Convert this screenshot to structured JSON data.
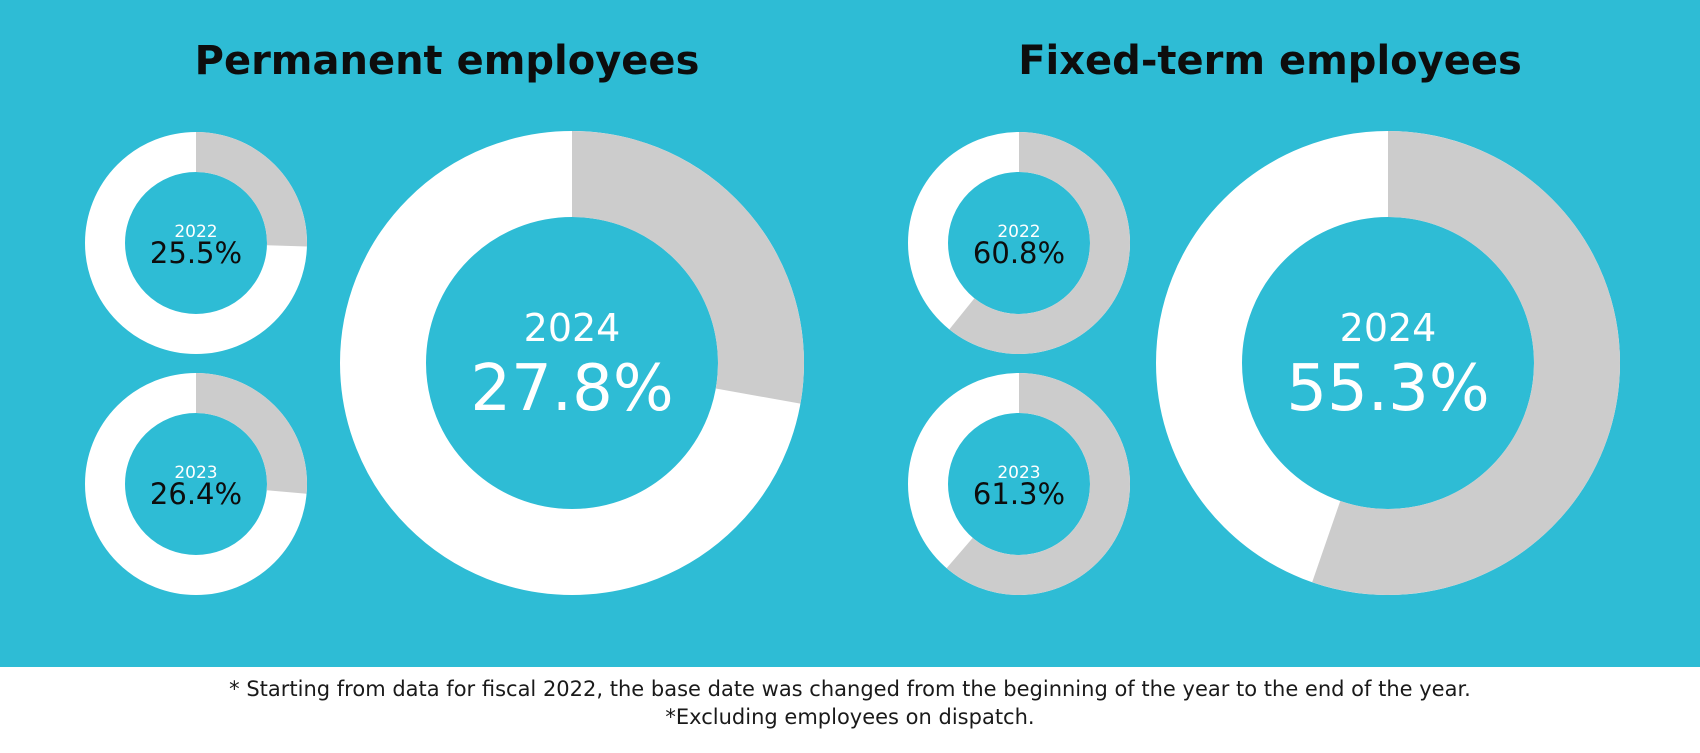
{
  "colors": {
    "background": "#2ebcd5",
    "share": "#cccccc",
    "remainder": "#ffffff",
    "small_value_text": "#0d0d0d",
    "large_value_text": "#ffffff"
  },
  "chart_data": [
    {
      "type": "pie",
      "variant": "donut",
      "title": "Permanent employees",
      "series": [
        {
          "year": "2022",
          "value": 25.5,
          "label": "25.5%"
        },
        {
          "year": "2023",
          "value": 26.4,
          "label": "26.4%"
        },
        {
          "year": "2024",
          "value": 27.8,
          "label": "27.8%"
        }
      ]
    },
    {
      "type": "pie",
      "variant": "donut",
      "title": "Fixed-term employees",
      "series": [
        {
          "year": "2022",
          "value": 60.8,
          "label": "60.8%"
        },
        {
          "year": "2023",
          "value": 61.3,
          "label": "61.3%"
        },
        {
          "year": "2024",
          "value": 55.3,
          "label": "55.3%"
        }
      ]
    }
  ],
  "footnotes": [
    "* Starting from data for fiscal 2022, the base date was changed from the beginning of the year to the end of the year.",
    "*Excluding employees on dispatch."
  ]
}
